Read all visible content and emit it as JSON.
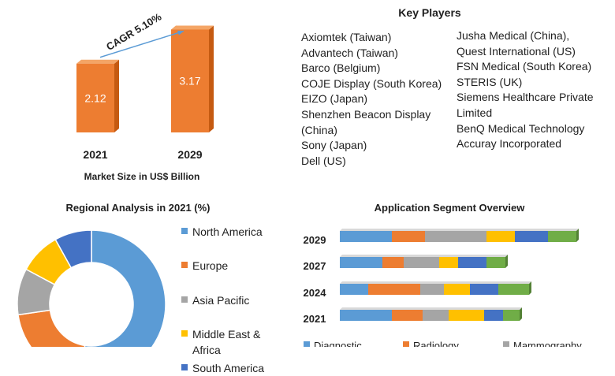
{
  "colors": {
    "orange": "#ed7d31",
    "blue": "#5b9bd5",
    "gray": "#a5a5a5",
    "yellow": "#ffc000",
    "darkblue": "#4472c4",
    "green": "#70ad47",
    "arrow": "#5b9bd5"
  },
  "chart_data": [
    {
      "type": "bar",
      "categories": [
        "2021",
        "2029"
      ],
      "values": [
        2.12,
        3.17
      ],
      "value_labels": [
        "2.12",
        "3.17"
      ],
      "annotation": "CAGR 5.10%",
      "xlabel": "Market Size in US$ Billion",
      "ylim": [
        0,
        3.4
      ]
    },
    {
      "type": "pie",
      "title": "Regional Analysis in 2021 (%)",
      "labels": [
        "North America",
        "Europe",
        "Asia Pacific",
        "Middle East & Africa",
        "South America"
      ],
      "values": [
        52,
        20,
        10,
        9,
        8
      ],
      "colors": [
        "#5b9bd5",
        "#ed7d31",
        "#a5a5a5",
        "#ffc000",
        "#4472c4"
      ]
    },
    {
      "type": "bar",
      "orientation": "horizontal-stacked",
      "title": "Application Segment Overview",
      "categories": [
        "2029",
        "2027",
        "2024",
        "2021"
      ],
      "series": [
        {
          "name": "Diagnostic",
          "values": [
            22,
            18,
            12,
            22
          ]
        },
        {
          "name": "Radiology",
          "values": [
            14,
            9,
            22,
            13
          ]
        },
        {
          "name": "Mammography",
          "values": [
            26,
            15,
            10,
            11
          ]
        },
        {
          "name": "",
          "values": [
            12,
            8,
            11,
            15
          ]
        },
        {
          "name": "",
          "values": [
            14,
            12,
            12,
            8
          ]
        },
        {
          "name": "",
          "values": [
            12,
            8,
            13,
            7
          ]
        }
      ]
    }
  ],
  "key_players": {
    "title": "Key Players",
    "column1": [
      "Axiomtek (Taiwan)",
      "Advantech (Taiwan)",
      "Barco (Belgium)",
      "COJE Display (South Korea)",
      "EIZO (Japan)",
      "Shenzhen Beacon Display (China)",
      "Sony (Japan)",
      "Dell (US)"
    ],
    "column2": [
      "Jusha Medical (China),",
      "Quest International (US)",
      "FSN Medical (South Korea)",
      "STERIS (UK)",
      "Siemens Healthcare Private Limited",
      "BenQ Medical Technology",
      "Accuray Incorporated"
    ]
  }
}
